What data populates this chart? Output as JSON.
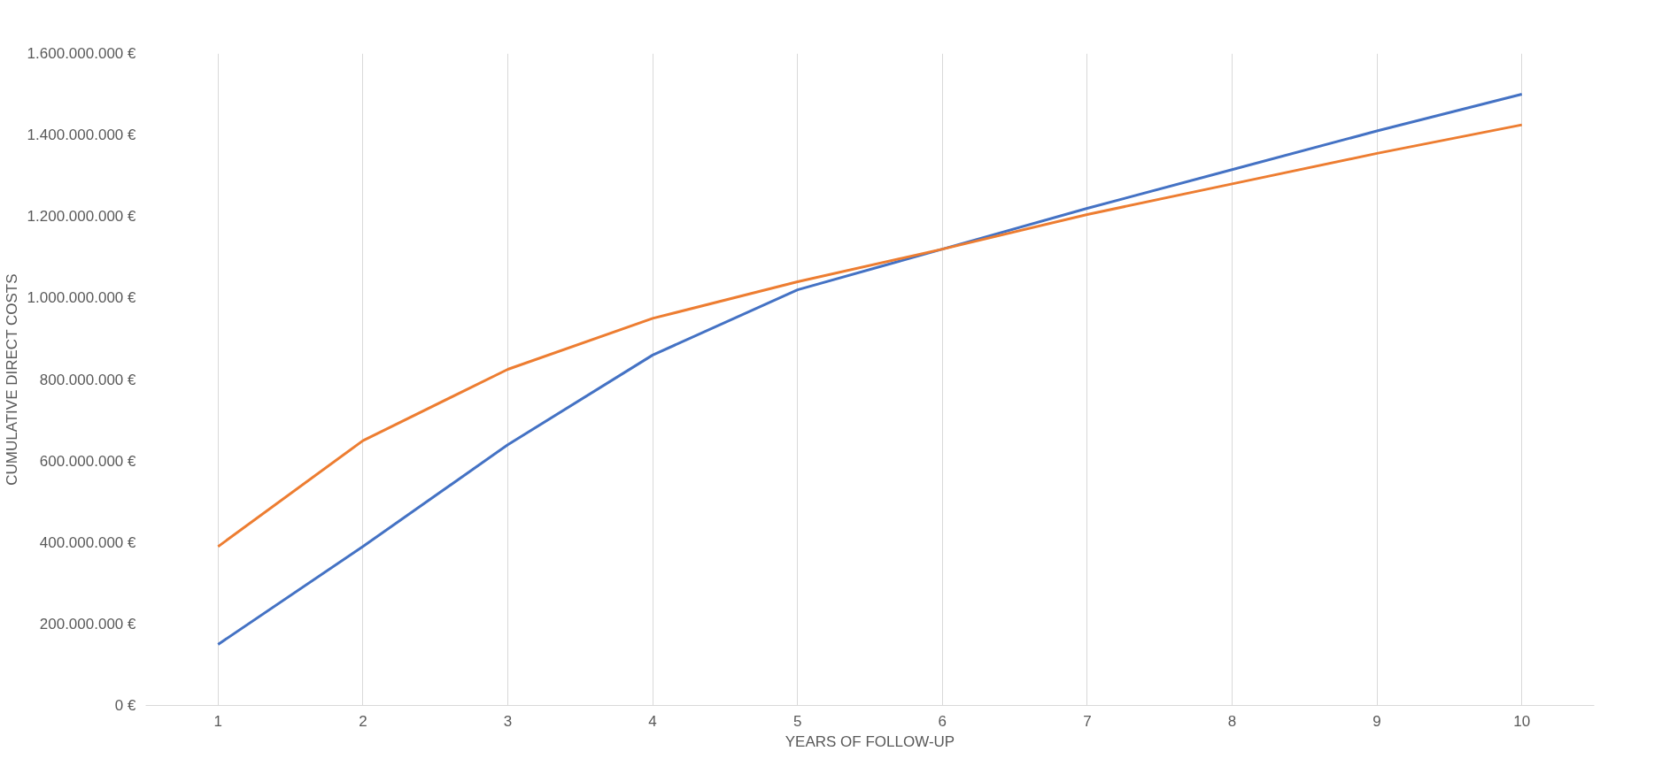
{
  "chart_data": {
    "type": "line",
    "xlabel": "YEARS OF FOLLOW-UP",
    "ylabel": "CUMULATIVE DIRECT COSTS",
    "categories": [
      "1",
      "2",
      "3",
      "4",
      "5",
      "6",
      "7",
      "8",
      "9",
      "10"
    ],
    "series": [
      {
        "color": "#4472c4",
        "values": [
          150000000,
          390000000,
          640000000,
          860000000,
          1020000000,
          1120000000,
          1220000000,
          1315000000,
          1410000000,
          1500000000
        ]
      },
      {
        "color": "#ed7d31",
        "values": [
          390000000,
          650000000,
          825000000,
          950000000,
          1040000000,
          1120000000,
          1205000000,
          1280000000,
          1355000000,
          1425000000
        ]
      }
    ],
    "ylim": [
      0,
      1600000000
    ],
    "yticks": [
      {
        "value": 0,
        "label": "0 €"
      },
      {
        "value": 200000000,
        "label": "200.000.000 €"
      },
      {
        "value": 400000000,
        "label": "400.000.000 €"
      },
      {
        "value": 600000000,
        "label": "600.000.000 €"
      },
      {
        "value": 800000000,
        "label": "800.000.000 €"
      },
      {
        "value": 1000000000,
        "label": "1.000.000.000 €"
      },
      {
        "value": 1200000000,
        "label": "1.200.000.000 €"
      },
      {
        "value": 1400000000,
        "label": "1.400.000.000 €"
      },
      {
        "value": 1600000000,
        "label": "1.600.000.000 €"
      }
    ],
    "grid": "x",
    "marker": "none",
    "line_style": "solid"
  }
}
